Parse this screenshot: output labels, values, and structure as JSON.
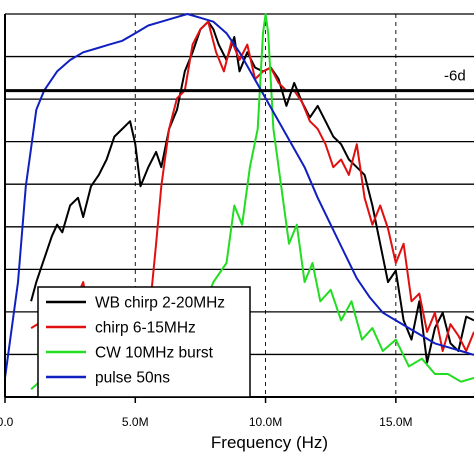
{
  "chart_data": {
    "type": "line",
    "xlabel": "Frequency (Hz)",
    "ylabel": "",
    "xlim": [
      0,
      18000000
    ],
    "ylim": [
      0,
      1
    ],
    "x_ticks": [
      0,
      5000000,
      10000000,
      15000000
    ],
    "x_tick_labels": [
      "0.0",
      "5.0M",
      "10.0M",
      "15.0M"
    ],
    "y_gridlines": [
      0,
      0.1111,
      0.2222,
      0.3333,
      0.4444,
      0.5556,
      0.6667,
      0.7778,
      0.8889,
      1.0
    ],
    "grid": true,
    "grid_style": "dashed",
    "reference_line": {
      "y": 0.8,
      "label": "-6d"
    },
    "legend_position": "bottom-left",
    "series": [
      {
        "name": "WB chirp 2-20MHz",
        "color": "#000000",
        "x": [
          1000000,
          1200000,
          1500000,
          1800000,
          2000000,
          2200000,
          2500000,
          2800000,
          3000000,
          3300000,
          3600000,
          3900000,
          4200000,
          4500000,
          4800000,
          5000000,
          5200000,
          5500000,
          5800000,
          6000000,
          6300000,
          6600000,
          6900000,
          7200000,
          7500000,
          7800000,
          8000000,
          8200000,
          8500000,
          8800000,
          9000000,
          9300000,
          9600000,
          9900000,
          10200000,
          10500000,
          10800000,
          11100000,
          11400000,
          11700000,
          12000000,
          12300000,
          12600000,
          12900000,
          13200000,
          13500000,
          13800000,
          14100000,
          14400000,
          14700000,
          15000000,
          15300000,
          15600000,
          15900000,
          16200000,
          16500000,
          16800000,
          17100000,
          17400000,
          17700000,
          18000000
        ],
        "values": [
          0.25,
          0.3,
          0.36,
          0.42,
          0.45,
          0.43,
          0.5,
          0.52,
          0.47,
          0.55,
          0.58,
          0.62,
          0.68,
          0.7,
          0.72,
          0.66,
          0.55,
          0.6,
          0.64,
          0.6,
          0.7,
          0.75,
          0.85,
          0.9,
          0.96,
          0.98,
          0.96,
          0.92,
          0.88,
          0.94,
          0.85,
          0.9,
          0.86,
          0.85,
          0.86,
          0.83,
          0.76,
          0.82,
          0.77,
          0.73,
          0.76,
          0.72,
          0.68,
          0.66,
          0.62,
          0.6,
          0.58,
          0.5,
          0.4,
          0.3,
          0.33,
          0.2,
          0.15,
          0.25,
          0.09,
          0.18,
          0.22,
          0.14,
          0.12,
          0.21,
          0.2
        ]
      },
      {
        "name": "chirp 6-15MHz",
        "color": "#e01010",
        "x": [
          1000000,
          1500000,
          2000000,
          2500000,
          3000000,
          3500000,
          4000000,
          4400000,
          4800000,
          5000000,
          5400000,
          5800000,
          6000000,
          6300000,
          6600000,
          6900000,
          7200000,
          7500000,
          7800000,
          8100000,
          8400000,
          8700000,
          9000000,
          9300000,
          9600000,
          9900000,
          10200000,
          10500000,
          10800000,
          11100000,
          11400000,
          11700000,
          12000000,
          12300000,
          12600000,
          12900000,
          13200000,
          13500000,
          13800000,
          14100000,
          14400000,
          14700000,
          15000000,
          15300000,
          15600000,
          15900000,
          16200000,
          16500000,
          16800000,
          17100000,
          17400000,
          17700000,
          18000000
        ],
        "values": [
          0.18,
          0.2,
          0.15,
          0.22,
          0.3,
          0.1,
          0.18,
          0.08,
          0.1,
          0.22,
          0.12,
          0.4,
          0.55,
          0.7,
          0.78,
          0.8,
          0.92,
          0.96,
          0.98,
          0.9,
          0.85,
          0.93,
          0.88,
          0.92,
          0.83,
          0.85,
          0.86,
          0.82,
          0.8,
          0.8,
          0.77,
          0.72,
          0.7,
          0.66,
          0.6,
          0.62,
          0.58,
          0.66,
          0.52,
          0.45,
          0.5,
          0.44,
          0.35,
          0.4,
          0.25,
          0.27,
          0.17,
          0.22,
          0.12,
          0.19,
          0.16,
          0.12,
          0.17
        ]
      },
      {
        "name": "CW 10MHz burst",
        "color": "#22dd22",
        "x": [
          1000000,
          1500000,
          2000000,
          2500000,
          3000000,
          3500000,
          4000000,
          4500000,
          5000000,
          5500000,
          6000000,
          6500000,
          7000000,
          7500000,
          8000000,
          8500000,
          8800000,
          9100000,
          9400000,
          9700000,
          9900000,
          10000000,
          10100000,
          10300000,
          10600000,
          10900000,
          11200000,
          11500000,
          11800000,
          12100000,
          12500000,
          12900000,
          13300000,
          13700000,
          14100000,
          14500000,
          15000000,
          15500000,
          16000000,
          16500000,
          17000000,
          17500000,
          18000000
        ],
        "values": [
          0.02,
          0.05,
          0.04,
          0.06,
          0.1,
          0.05,
          0.08,
          0.07,
          0.12,
          0.09,
          0.15,
          0.2,
          0.25,
          0.22,
          0.3,
          0.35,
          0.5,
          0.45,
          0.6,
          0.7,
          0.95,
          1.0,
          0.95,
          0.7,
          0.55,
          0.4,
          0.45,
          0.3,
          0.35,
          0.25,
          0.28,
          0.2,
          0.25,
          0.15,
          0.18,
          0.12,
          0.15,
          0.08,
          0.1,
          0.06,
          0.06,
          0.04,
          0.05
        ]
      },
      {
        "name": "pulse 50ns",
        "color": "#1020c0",
        "x": [
          0,
          500000,
          800000,
          1000000,
          1200000,
          1500000,
          2000000,
          2500000,
          3000000,
          3500000,
          4000000,
          4500000,
          5000000,
          5500000,
          6000000,
          6500000,
          7000000,
          7500000,
          8000000,
          8500000,
          9000000,
          9500000,
          10000000,
          10500000,
          11000000,
          11500000,
          12000000,
          12500000,
          13000000,
          13500000,
          14000000,
          14500000,
          15000000,
          15500000,
          16000000,
          16500000,
          17000000,
          17500000,
          18000000
        ],
        "values": [
          0.05,
          0.3,
          0.55,
          0.65,
          0.75,
          0.8,
          0.85,
          0.88,
          0.9,
          0.91,
          0.92,
          0.93,
          0.95,
          0.97,
          0.98,
          0.99,
          1.0,
          0.99,
          0.98,
          0.95,
          0.9,
          0.84,
          0.78,
          0.72,
          0.66,
          0.6,
          0.52,
          0.45,
          0.38,
          0.31,
          0.26,
          0.22,
          0.2,
          0.18,
          0.16,
          0.14,
          0.13,
          0.12,
          0.11
        ]
      }
    ]
  }
}
